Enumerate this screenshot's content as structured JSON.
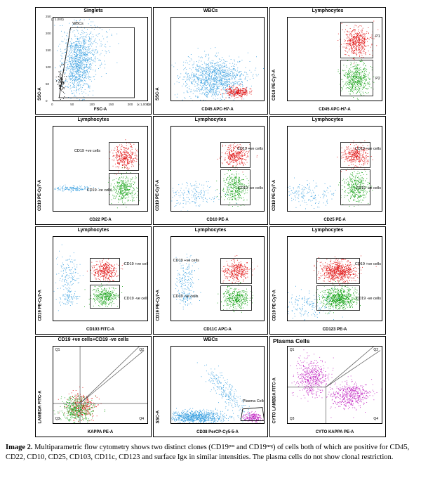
{
  "chart_data": [
    {
      "type": "scatter",
      "title": "Singlets",
      "xlabel": "FSC-A",
      "ylabel": "SSC-A",
      "gates": [
        "WBCs"
      ],
      "series": [
        {
          "color": "#3aa0e0"
        },
        {
          "color": "#000000"
        }
      ],
      "ticks_x": [
        "0",
        "50",
        "100",
        "150",
        "200",
        "250"
      ],
      "ticks_y": [
        "0",
        "50",
        "100",
        "150",
        "200",
        "250"
      ],
      "axis_end_x": "(x 1,000)",
      "axis_end_y": "(x 1,000)"
    },
    {
      "type": "scatter",
      "title": "WBCs",
      "xlabel": "CD45 APC-H7-A",
      "ylabel": "SSC-A",
      "series": [
        {
          "color": "#3aa0e0"
        },
        {
          "color": "#e01010"
        }
      ]
    },
    {
      "type": "scatter",
      "title": "Lymphocytes",
      "xlabel": "CD45 APC-H7-A",
      "ylabel": "CD19 PE-Cy7-A",
      "gates": [
        "P1",
        "P2"
      ],
      "series": [
        {
          "color": "#e01010"
        },
        {
          "color": "#10a010"
        }
      ]
    },
    {
      "type": "scatter",
      "title": "Lymphocytes",
      "xlabel": "CD22 PE-A",
      "ylabel": "CD19 PE-Cy7-A",
      "gates": [
        "CD19 +ve cells",
        "CD19 -ve cells"
      ],
      "series": [
        {
          "color": "#3aa0e0"
        },
        {
          "color": "#e01010"
        },
        {
          "color": "#10a010"
        }
      ]
    },
    {
      "type": "scatter",
      "title": "Lymphocytes",
      "xlabel": "CD10 PE-A",
      "ylabel": "CD19 PE-Cy7-A",
      "gates": [
        "CD19 +ve cells",
        "CD19 -ve cells"
      ],
      "series": [
        {
          "color": "#3aa0e0"
        },
        {
          "color": "#e01010"
        },
        {
          "color": "#10a010"
        }
      ]
    },
    {
      "type": "scatter",
      "title": "Lymphocytes",
      "xlabel": "CD25 PE-A",
      "ylabel": "CD19 PE-Cy7-A",
      "gates": [
        "CD19 +ve cells",
        "CD19 -ve cells"
      ],
      "series": [
        {
          "color": "#3aa0e0"
        },
        {
          "color": "#e01010"
        },
        {
          "color": "#10a010"
        }
      ]
    },
    {
      "type": "scatter",
      "title": "Lymphocytes",
      "xlabel": "CD103 FITC-A",
      "ylabel": "CD19 PE-Cy7-A",
      "gates": [
        "CD19 +ve cells",
        "CD19 -ve cells"
      ],
      "series": [
        {
          "color": "#3aa0e0"
        },
        {
          "color": "#e01010"
        },
        {
          "color": "#10a010"
        }
      ]
    },
    {
      "type": "scatter",
      "title": "Lymphocytes",
      "xlabel": "CD11C APC-A",
      "ylabel": "CD19 PE-Cy7-A",
      "gates": [
        "CD19 +ve cells",
        "CD19 -ve cells"
      ],
      "series": [
        {
          "color": "#3aa0e0"
        },
        {
          "color": "#e01010"
        },
        {
          "color": "#10a010"
        }
      ]
    },
    {
      "type": "scatter",
      "title": "Lymphocytes",
      "xlabel": "CD123 PE-A",
      "ylabel": "CD19 PE-Cy7-A",
      "gates": [
        "CD19 +ve cells",
        "CD19 -ve cells"
      ],
      "series": [
        {
          "color": "#3aa0e0"
        },
        {
          "color": "#e01010"
        },
        {
          "color": "#10a010"
        }
      ]
    },
    {
      "type": "scatter",
      "title": "CD19 +ve cells+CD19 -ve cells",
      "xlabel": "KAPPA PE-A",
      "ylabel": "LAMBDA FITC-A",
      "quadrants": [
        "Q1",
        "Q2",
        "Q3",
        "Q4"
      ],
      "series": [
        {
          "color": "#e01010"
        },
        {
          "color": "#10a010"
        }
      ]
    },
    {
      "type": "scatter",
      "title": "WBCs",
      "xlabel": "CD38 PerCP-Cy5-5-A",
      "ylabel": "SSC-A",
      "gates": [
        "Plasma Cells"
      ],
      "series": [
        {
          "color": "#3aa0e0"
        },
        {
          "color": "#c020c0"
        }
      ]
    },
    {
      "type": "scatter",
      "title": "Plasma Cells",
      "xlabel": "CYTO KAPPA PE-A",
      "ylabel": "CYTO LAMBDA FITC-A",
      "quadrants": [
        "Q1",
        "Q2",
        "Q3",
        "Q4"
      ],
      "series": [
        {
          "color": "#c020c0"
        }
      ]
    }
  ],
  "caption": {
    "label": "Image 2.",
    "text": " Multiparametric flow cytometry shows two distinct clones (CD19ᵖᵒˢ and CD19ⁿᵉᵍ) of cells both of which are positive for CD45, CD22, CD10, CD25, CD103, CD11c, CD123 and surface Igκ in similar intensities. The plasma cells do not show clonal restriction."
  }
}
